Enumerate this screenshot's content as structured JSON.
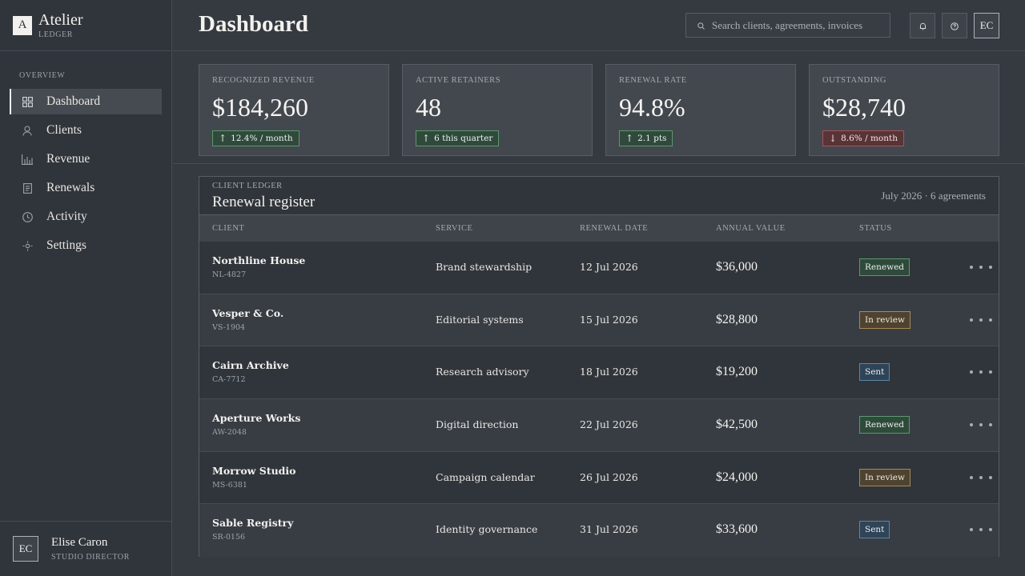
{
  "brand": {
    "mark": "A",
    "name": "Atelier",
    "sub": "LEDGER"
  },
  "nav": {
    "section": "OVERVIEW",
    "items": [
      {
        "label": "Dashboard",
        "icon": "grid-icon",
        "active": true
      },
      {
        "label": "Clients",
        "icon": "person-icon"
      },
      {
        "label": "Revenue",
        "icon": "bar-chart-icon"
      },
      {
        "label": "Renewals",
        "icon": "document-icon"
      },
      {
        "label": "Activity",
        "icon": "clock-icon"
      },
      {
        "label": "Settings",
        "icon": "gear-icon"
      }
    ]
  },
  "profile": {
    "initials": "EC",
    "name": "Elise Caron",
    "role": "STUDIO DIRECTOR"
  },
  "header": {
    "title": "Dashboard",
    "search_placeholder": "Search clients, agreements, invoices",
    "user_initials": "EC"
  },
  "kpis": [
    {
      "label": "RECOGNIZED REVENUE",
      "value": "$184,260",
      "delta": "12.4% / month",
      "direction": "up"
    },
    {
      "label": "ACTIVE RETAINERS",
      "value": "48",
      "delta": "6 this quarter",
      "direction": "up"
    },
    {
      "label": "RENEWAL RATE",
      "value": "94.8%",
      "delta": "2.1 pts",
      "direction": "up"
    },
    {
      "label": "OUTSTANDING",
      "value": "$28,740",
      "delta": "8.6% / month",
      "direction": "down"
    }
  ],
  "ledger": {
    "kicker": "CLIENT LEDGER",
    "title": "Renewal register",
    "meta": "July 2026 · 6 agreements",
    "columns": [
      "CLIENT",
      "SERVICE",
      "RENEWAL DATE",
      "ANNUAL VALUE",
      "STATUS"
    ],
    "rows": [
      {
        "client": "Northline House",
        "id": "NL-4827",
        "service": "Brand stewardship",
        "date": "12 Jul 2026",
        "value": "$36,000",
        "status": "Renewed",
        "status_type": "renewed"
      },
      {
        "client": "Vesper & Co.",
        "id": "VS-1904",
        "service": "Editorial systems",
        "date": "15 Jul 2026",
        "value": "$28,800",
        "status": "In review",
        "status_type": "review"
      },
      {
        "client": "Cairn Archive",
        "id": "CA-7712",
        "service": "Research advisory",
        "date": "18 Jul 2026",
        "value": "$19,200",
        "status": "Sent",
        "status_type": "sent"
      },
      {
        "client": "Aperture Works",
        "id": "AW-2048",
        "service": "Digital direction",
        "date": "22 Jul 2026",
        "value": "$42,500",
        "status": "Renewed",
        "status_type": "renewed"
      },
      {
        "client": "Morrow Studio",
        "id": "MS-6381",
        "service": "Campaign calendar",
        "date": "26 Jul 2026",
        "value": "$24,000",
        "status": "In review",
        "status_type": "review"
      },
      {
        "client": "Sable Registry",
        "id": "SR-0156",
        "service": "Identity governance",
        "date": "31 Jul 2026",
        "value": "$33,600",
        "status": "Sent",
        "status_type": "sent"
      }
    ]
  },
  "colors": {
    "up": "#5c9870",
    "down": "#a65458",
    "review": "#a88a52",
    "sent": "#5b86a6"
  }
}
